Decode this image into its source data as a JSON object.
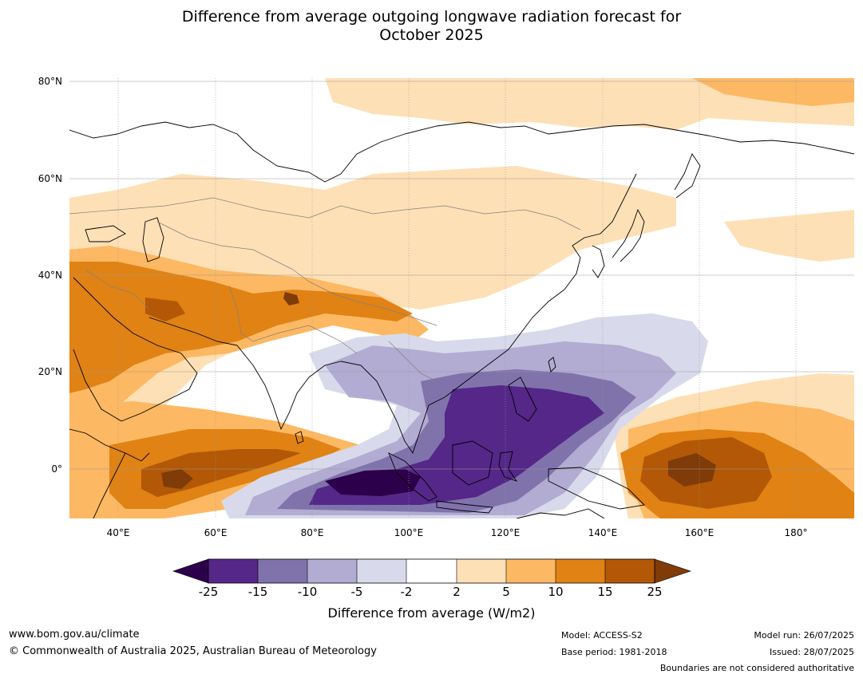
{
  "title": {
    "line1": "Difference from average outgoing longwave radiation forecast for",
    "line2": "October 2025"
  },
  "map": {
    "lat_labels": [
      "80°N",
      "60°N",
      "40°N",
      "20°N",
      "0°"
    ],
    "lon_labels": [
      "40°E",
      "60°E",
      "80°E",
      "100°E",
      "120°E",
      "140°E",
      "160°E",
      "180°"
    ]
  },
  "colorbar": {
    "ticks": [
      "-25",
      "-15",
      "-10",
      "-5",
      "-2",
      "2",
      "5",
      "10",
      "15",
      "25"
    ],
    "label": "Difference from average (W/m2)",
    "colors": {
      "below": "#2d004b",
      "c1": "#542788",
      "c2": "#8073ac",
      "c3": "#b2abd2",
      "c4": "#d8daeb",
      "c5": "#ffffff",
      "c6": "#fee0b6",
      "c7": "#fdb863",
      "c8": "#e08214",
      "c9": "#b35806",
      "above": "#7f3b08"
    }
  },
  "footer": {
    "website": "www.bom.gov.au/climate",
    "copyright": "© Commonwealth of Australia 2025, Australian Bureau of Meteorology",
    "model": "Model: ACCESS-S2",
    "base_period": "Base period: 1981-2018",
    "model_run": "Model run: 26/07/2025",
    "issued": "Issued: 28/07/2025",
    "disclaimer": "Boundaries are not considered authoritative"
  }
}
